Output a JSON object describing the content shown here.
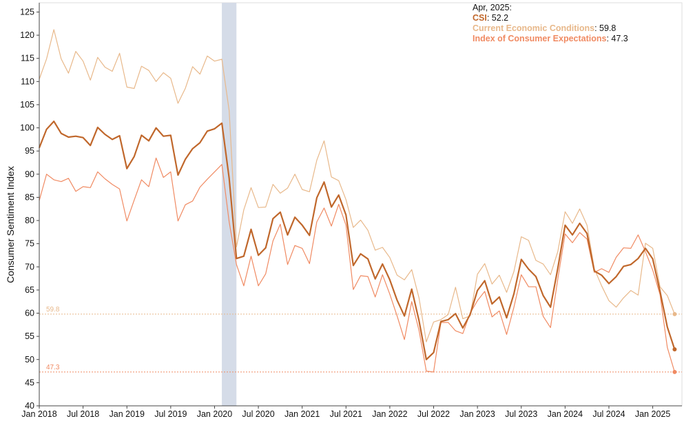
{
  "chart_data": {
    "type": "line",
    "ylabel": "Consumer Sentiment Index",
    "ylim": [
      40,
      127
    ],
    "yticks": [
      40,
      45,
      50,
      55,
      60,
      65,
      70,
      75,
      80,
      85,
      90,
      95,
      100,
      105,
      110,
      115,
      120,
      125
    ],
    "xlim": [
      "2018-01",
      "2025-05"
    ],
    "xticks": [
      {
        "label": "Jan 2018",
        "date": "2018-01"
      },
      {
        "label": "Jul 2018",
        "date": "2018-07"
      },
      {
        "label": "Jan 2019",
        "date": "2019-01"
      },
      {
        "label": "Jul 2019",
        "date": "2019-07"
      },
      {
        "label": "Jan 2020",
        "date": "2020-01"
      },
      {
        "label": "Jul 2020",
        "date": "2020-07"
      },
      {
        "label": "Jan 2021",
        "date": "2021-01"
      },
      {
        "label": "Jul 2021",
        "date": "2021-07"
      },
      {
        "label": "Jan 2022",
        "date": "2022-01"
      },
      {
        "label": "Jul 2022",
        "date": "2022-07"
      },
      {
        "label": "Jan 2023",
        "date": "2023-01"
      },
      {
        "label": "Jul 2023",
        "date": "2023-07"
      },
      {
        "label": "Jan 2024",
        "date": "2024-01"
      },
      {
        "label": "Jul 2024",
        "date": "2024-07"
      },
      {
        "label": "Jan 2025",
        "date": "2025-01"
      }
    ],
    "recession": {
      "start": "2020-02",
      "end": "2020-04"
    },
    "x": [
      "2018-01",
      "2018-02",
      "2018-03",
      "2018-04",
      "2018-05",
      "2018-06",
      "2018-07",
      "2018-08",
      "2018-09",
      "2018-10",
      "2018-11",
      "2018-12",
      "2019-01",
      "2019-02",
      "2019-03",
      "2019-04",
      "2019-05",
      "2019-06",
      "2019-07",
      "2019-08",
      "2019-09",
      "2019-10",
      "2019-11",
      "2019-12",
      "2020-01",
      "2020-02",
      "2020-03",
      "2020-04",
      "2020-05",
      "2020-06",
      "2020-07",
      "2020-08",
      "2020-09",
      "2020-10",
      "2020-11",
      "2020-12",
      "2021-01",
      "2021-02",
      "2021-03",
      "2021-04",
      "2021-05",
      "2021-06",
      "2021-07",
      "2021-08",
      "2021-09",
      "2021-10",
      "2021-11",
      "2021-12",
      "2022-01",
      "2022-02",
      "2022-03",
      "2022-04",
      "2022-05",
      "2022-06",
      "2022-07",
      "2022-08",
      "2022-09",
      "2022-10",
      "2022-11",
      "2022-12",
      "2023-01",
      "2023-02",
      "2023-03",
      "2023-04",
      "2023-05",
      "2023-06",
      "2023-07",
      "2023-08",
      "2023-09",
      "2023-10",
      "2023-11",
      "2023-12",
      "2024-01",
      "2024-02",
      "2024-03",
      "2024-04",
      "2024-05",
      "2024-06",
      "2024-07",
      "2024-08",
      "2024-09",
      "2024-10",
      "2024-11",
      "2024-12",
      "2025-01",
      "2025-02",
      "2025-03",
      "2025-04"
    ],
    "series": [
      {
        "name": "CSI",
        "color": "#c0672b",
        "width": 2.2,
        "values": [
          95.7,
          99.7,
          101.4,
          98.8,
          98.0,
          98.2,
          97.9,
          96.2,
          100.1,
          98.6,
          97.5,
          98.3,
          91.2,
          93.8,
          98.4,
          97.2,
          100.0,
          98.2,
          98.4,
          89.8,
          93.2,
          95.5,
          96.8,
          99.3,
          99.8,
          101.0,
          89.1,
          71.8,
          72.3,
          78.1,
          72.5,
          74.1,
          80.4,
          81.8,
          76.9,
          80.7,
          79.0,
          76.8,
          84.9,
          88.3,
          82.9,
          85.5,
          81.2,
          70.3,
          72.8,
          71.7,
          67.4,
          70.6,
          67.2,
          62.8,
          59.4,
          65.2,
          58.4,
          50.0,
          51.5,
          58.2,
          58.6,
          59.9,
          56.8,
          59.7,
          64.9,
          67.0,
          62.0,
          63.5,
          59.0,
          64.2,
          71.6,
          69.5,
          67.9,
          63.8,
          61.3,
          69.7,
          79.0,
          76.9,
          79.4,
          77.2,
          69.1,
          68.2,
          66.4,
          67.9,
          70.1,
          70.5,
          71.8,
          74.0,
          71.7,
          64.7,
          57.0,
          52.2
        ]
      },
      {
        "name": "Current Economic Conditions",
        "color": "#e8b88a",
        "width": 1.2,
        "values": [
          110.5,
          114.9,
          121.2,
          114.9,
          111.8,
          116.5,
          114.4,
          110.3,
          115.2,
          113.1,
          112.2,
          116.1,
          108.8,
          108.5,
          113.3,
          112.4,
          110.0,
          111.9,
          110.7,
          105.3,
          108.5,
          113.2,
          111.6,
          115.5,
          114.4,
          114.8,
          103.7,
          74.3,
          82.3,
          87.1,
          82.8,
          82.9,
          87.8,
          85.9,
          87.0,
          90.0,
          86.7,
          86.2,
          93.0,
          97.2,
          89.4,
          88.6,
          84.5,
          78.5,
          80.1,
          77.9,
          73.6,
          74.2,
          72.0,
          68.2,
          67.2,
          69.4,
          63.3,
          53.8,
          58.1,
          58.6,
          59.7,
          65.6,
          58.8,
          59.4,
          68.4,
          70.7,
          66.3,
          68.2,
          64.5,
          69.0,
          76.5,
          75.7,
          71.4,
          70.6,
          68.3,
          73.3,
          81.9,
          79.4,
          82.5,
          79.0,
          69.6,
          65.9,
          62.7,
          61.3,
          63.3,
          64.9,
          63.9,
          75.1,
          74.0,
          65.7,
          63.8,
          59.8
        ]
      },
      {
        "name": "Index of Consumer Expectations",
        "color": "#f08a62",
        "width": 1.2,
        "values": [
          84.3,
          90.0,
          88.8,
          88.4,
          89.1,
          86.3,
          87.3,
          87.1,
          90.5,
          89.0,
          87.8,
          86.8,
          79.9,
          84.4,
          88.8,
          87.3,
          93.5,
          89.3,
          90.5,
          79.9,
          83.4,
          84.2,
          87.2,
          88.9,
          90.5,
          92.1,
          79.7,
          70.5,
          65.9,
          72.3,
          65.9,
          68.5,
          75.6,
          79.2,
          70.5,
          74.6,
          74.0,
          70.7,
          79.7,
          82.7,
          78.8,
          83.5,
          79.0,
          65.1,
          68.1,
          67.9,
          63.5,
          68.3,
          64.1,
          59.4,
          54.3,
          62.5,
          56.3,
          47.5,
          47.3,
          58.0,
          58.0,
          56.2,
          55.6,
          60.0,
          62.7,
          64.7,
          59.2,
          60.5,
          55.4,
          61.3,
          68.3,
          65.7,
          65.7,
          59.3,
          56.9,
          67.4,
          77.1,
          75.2,
          77.4,
          76.0,
          68.8,
          69.6,
          68.8,
          72.1,
          74.1,
          74.0,
          76.9,
          73.3,
          69.3,
          64.0,
          52.6,
          47.3
        ]
      }
    ],
    "reference_lines": [
      {
        "value": 59.8,
        "label": "59.8",
        "color": "#e8b88a"
      },
      {
        "value": 47.3,
        "label": "47.3",
        "color": "#f08a62"
      }
    ],
    "legend": {
      "position": "top-right",
      "date_label": "Apr, 2025:",
      "entries": [
        {
          "name": "CSI",
          "value": ": 52.2",
          "color": "#c0672b"
        },
        {
          "name": "Current Economic Conditions",
          "value": ": 59.8",
          "color": "#e8b88a"
        },
        {
          "name": "Index of Consumer Expectations",
          "value": ": 47.3",
          "color": "#f08a62"
        }
      ]
    }
  }
}
